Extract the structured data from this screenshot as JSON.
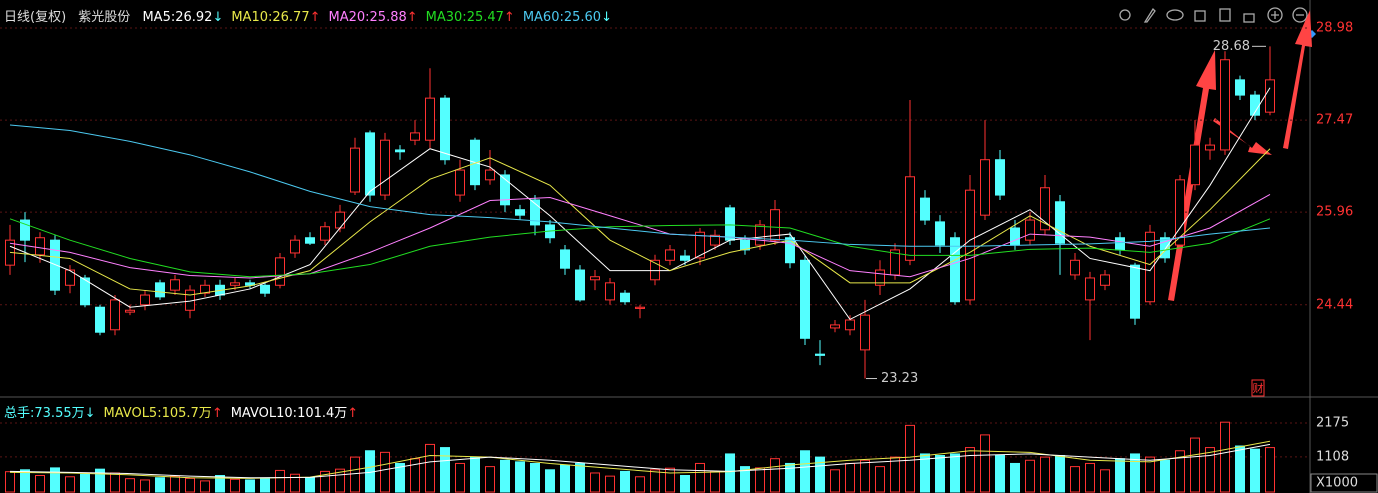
{
  "chart_data": {
    "type": "candlestick",
    "header": {
      "period": "日线(复权)",
      "name": "紫光股份",
      "indicators": [
        {
          "label": "MA5:",
          "value": "26.92",
          "arrow": "↓",
          "color": "#ffffff",
          "arrow_color": "#54ffff",
          "values": [
            25.4,
            25.0,
            24.4,
            24.5,
            24.7,
            25.1,
            26.3,
            27.0,
            26.7,
            25.9,
            25.0,
            25.0,
            25.5,
            25.6,
            24.2,
            24.7,
            25.5,
            26.0,
            25.2,
            25.0,
            26.4,
            28.0
          ]
        },
        {
          "label": "MA10:",
          "value": "26.77",
          "arrow": "↑",
          "color": "#e8e84a",
          "arrow_color": "#ff3232",
          "values": [
            25.3,
            25.2,
            24.7,
            24.6,
            24.75,
            25.0,
            25.8,
            26.5,
            26.85,
            26.4,
            25.5,
            25.0,
            25.3,
            25.5,
            24.8,
            24.8,
            25.3,
            25.9,
            25.4,
            25.1,
            26.0,
            27.0
          ]
        },
        {
          "label": "MA20:",
          "value": "25.88",
          "arrow": "↑",
          "color": "#ff80ff",
          "arrow_color": "#ff3232",
          "values": [
            25.45,
            25.3,
            25.05,
            24.92,
            24.88,
            24.95,
            25.3,
            25.7,
            26.15,
            26.2,
            25.9,
            25.6,
            25.55,
            25.45,
            25.0,
            24.9,
            25.2,
            25.6,
            25.55,
            25.4,
            25.7,
            26.25
          ]
        },
        {
          "label": "MA30:",
          "value": "25.47",
          "arrow": "↑",
          "color": "#22dd22",
          "arrow_color": "#ff3232",
          "values": [
            25.85,
            25.5,
            25.2,
            24.98,
            24.9,
            24.95,
            25.1,
            25.4,
            25.55,
            25.65,
            25.72,
            25.74,
            25.75,
            25.7,
            25.4,
            25.25,
            25.25,
            25.35,
            25.37,
            25.3,
            25.45,
            25.85
          ]
        },
        {
          "label": "MA60:",
          "value": "25.60",
          "arrow": "↓",
          "color": "#4cc9f0",
          "arrow_color": "#54ffff",
          "values": [
            27.39,
            27.3,
            27.12,
            26.9,
            26.62,
            26.3,
            26.05,
            25.92,
            25.87,
            25.8,
            25.7,
            25.6,
            25.55,
            25.5,
            25.43,
            25.4,
            25.4,
            25.42,
            25.44,
            25.48,
            25.6,
            25.7
          ]
        }
      ]
    },
    "ma_x": [
      0,
      4,
      8,
      12,
      16,
      20,
      24,
      28,
      32,
      36,
      40,
      44,
      48,
      52,
      56,
      60,
      64,
      68,
      72,
      76,
      80,
      84
    ],
    "ohlc": [
      [
        25.09,
        25.75,
        24.93,
        25.5
      ],
      [
        25.83,
        25.96,
        25.14,
        25.5
      ],
      [
        25.26,
        25.63,
        25.13,
        25.54
      ],
      [
        25.5,
        25.58,
        24.6,
        24.68
      ],
      [
        24.76,
        25.09,
        24.63,
        25.01
      ],
      [
        24.88,
        24.93,
        24.4,
        24.44
      ],
      [
        24.4,
        24.44,
        23.94,
        23.99
      ],
      [
        24.03,
        24.6,
        23.94,
        24.52
      ],
      [
        24.32,
        24.44,
        24.27,
        24.35
      ],
      [
        24.44,
        24.68,
        24.35,
        24.6
      ],
      [
        24.8,
        24.85,
        24.52,
        24.57
      ],
      [
        24.68,
        24.93,
        24.6,
        24.85
      ],
      [
        24.35,
        24.76,
        24.22,
        24.68
      ],
      [
        24.63,
        24.85,
        24.57,
        24.76
      ],
      [
        24.76,
        24.85,
        24.52,
        24.6
      ],
      [
        24.76,
        24.88,
        24.68,
        24.8
      ],
      [
        24.8,
        24.85,
        24.71,
        24.76
      ],
      [
        24.76,
        24.8,
        24.57,
        24.63
      ],
      [
        24.76,
        25.29,
        24.71,
        25.21
      ],
      [
        25.29,
        25.58,
        25.21,
        25.5
      ],
      [
        25.54,
        25.63,
        25.42,
        25.45
      ],
      [
        25.5,
        25.8,
        25.42,
        25.72
      ],
      [
        25.7,
        26.08,
        25.63,
        25.96
      ],
      [
        26.29,
        27.18,
        26.24,
        27.01
      ],
      [
        27.26,
        27.3,
        26.13,
        26.24
      ],
      [
        26.24,
        27.26,
        26.16,
        27.14
      ],
      [
        26.98,
        27.06,
        26.82,
        26.95
      ],
      [
        27.14,
        27.47,
        27.06,
        27.26
      ],
      [
        27.14,
        28.32,
        27.01,
        27.83
      ],
      [
        27.83,
        27.88,
        26.74,
        26.82
      ],
      [
        26.24,
        26.82,
        26.13,
        26.65
      ],
      [
        27.14,
        27.18,
        26.32,
        26.41
      ],
      [
        26.49,
        26.98,
        26.41,
        26.65
      ],
      [
        26.57,
        26.65,
        25.96,
        26.08
      ],
      [
        26.0,
        26.08,
        25.83,
        25.91
      ],
      [
        26.16,
        26.24,
        25.58,
        25.75
      ],
      [
        25.75,
        25.83,
        25.45,
        25.54
      ],
      [
        25.34,
        25.42,
        24.93,
        25.04
      ],
      [
        25.01,
        25.09,
        24.49,
        24.52
      ],
      [
        24.85,
        25.01,
        24.68,
        24.9
      ],
      [
        24.52,
        24.88,
        24.44,
        24.8
      ],
      [
        24.63,
        24.68,
        24.44,
        24.49
      ],
      [
        24.38,
        24.44,
        24.22,
        24.4
      ],
      [
        24.85,
        25.26,
        24.76,
        25.17
      ],
      [
        25.17,
        25.42,
        25.09,
        25.34
      ],
      [
        25.24,
        25.34,
        25.09,
        25.17
      ],
      [
        25.21,
        25.7,
        25.09,
        25.63
      ],
      [
        25.42,
        25.67,
        25.34,
        25.58
      ],
      [
        26.03,
        26.08,
        25.42,
        25.5
      ],
      [
        25.5,
        25.58,
        25.26,
        25.34
      ],
      [
        25.42,
        25.83,
        25.34,
        25.75
      ],
      [
        25.5,
        26.16,
        25.42,
        26.0
      ],
      [
        25.54,
        25.63,
        25.04,
        25.13
      ],
      [
        25.17,
        25.26,
        23.78,
        23.89
      ],
      [
        23.63,
        23.86,
        23.45,
        23.61
      ],
      [
        24.06,
        24.19,
        23.99,
        24.11
      ],
      [
        24.03,
        24.27,
        23.94,
        24.19
      ],
      [
        23.7,
        24.52,
        23.23,
        24.27
      ],
      [
        24.76,
        25.17,
        24.6,
        25.01
      ],
      [
        24.93,
        25.45,
        24.85,
        25.34
      ],
      [
        25.17,
        27.8,
        25.09,
        26.54
      ],
      [
        26.19,
        26.32,
        25.75,
        25.83
      ],
      [
        25.8,
        25.91,
        25.29,
        25.42
      ],
      [
        25.54,
        25.63,
        24.44,
        24.49
      ],
      [
        24.52,
        26.57,
        24.44,
        26.32
      ],
      [
        25.91,
        27.47,
        25.83,
        26.82
      ],
      [
        26.82,
        26.98,
        26.16,
        26.24
      ],
      [
        25.7,
        25.83,
        25.34,
        25.42
      ],
      [
        25.5,
        25.96,
        25.42,
        25.83
      ],
      [
        25.67,
        26.57,
        25.58,
        26.36
      ],
      [
        26.13,
        26.24,
        24.93,
        25.45
      ],
      [
        24.93,
        25.29,
        24.85,
        25.17
      ],
      [
        24.52,
        24.98,
        23.86,
        24.88
      ],
      [
        24.76,
        25.01,
        24.68,
        24.93
      ],
      [
        25.54,
        25.63,
        25.26,
        25.34
      ],
      [
        25.09,
        25.13,
        24.11,
        24.22
      ],
      [
        24.49,
        25.75,
        24.44,
        25.63
      ],
      [
        25.54,
        25.63,
        25.13,
        25.21
      ],
      [
        25.42,
        26.57,
        25.34,
        26.49
      ],
      [
        26.41,
        27.47,
        26.32,
        27.06
      ],
      [
        26.98,
        27.18,
        26.82,
        27.06
      ],
      [
        26.98,
        28.6,
        26.9,
        28.46
      ],
      [
        28.13,
        28.2,
        27.8,
        27.88
      ],
      [
        27.88,
        27.95,
        27.47,
        27.55
      ],
      [
        27.6,
        28.68,
        27.55,
        28.13
      ]
    ],
    "up_color": "#ff3232",
    "down_color": "#54ffff",
    "ylim": [
      22.96,
      29.44
    ],
    "yticks": [
      24.44,
      25.96,
      27.47,
      28.98
    ],
    "grid": true,
    "high_label": 28.68,
    "low_label": 23.23,
    "badge": "财",
    "volume": {
      "indicators": [
        {
          "label": "总手:",
          "value": "73.55万",
          "arrow": "↓",
          "color": "#54ffff",
          "arrow_color": "#54ffff"
        },
        {
          "label": "MAVOL5:",
          "value": "105.7万",
          "arrow": "↑",
          "color": "#e8e84a",
          "arrow_color": "#ff3232",
          "values": [
            620,
            600,
            540,
            450,
            430,
            470,
            780,
            1150,
            1100,
            900,
            750,
            600,
            640,
            850,
            1000,
            1100,
            1300,
            1250,
            1000,
            950,
            1250,
            1600
          ]
        },
        {
          "label": "MAVOL10:",
          "value": "101.4万",
          "arrow": "↑",
          "color": "#ffffff",
          "arrow_color": "#ff3232",
          "values": [
            650,
            620,
            580,
            500,
            450,
            460,
            620,
            950,
            1100,
            1000,
            850,
            700,
            650,
            750,
            900,
            1000,
            1150,
            1200,
            1100,
            1000,
            1150,
            1500
          ]
        }
      ],
      "values": [
        640,
        700,
        520,
        760,
        480,
        560,
        720,
        600,
        420,
        380,
        450,
        500,
        430,
        350,
        520,
        400,
        380,
        420,
        680,
        560,
        460,
        650,
        720,
        1100,
        1300,
        1250,
        900,
        1050,
        1500,
        1400,
        900,
        1100,
        800,
        1000,
        950,
        900,
        700,
        850,
        900,
        600,
        500,
        650,
        480,
        700,
        750,
        520,
        900,
        650,
        1200,
        800,
        760,
        1050,
        900,
        1300,
        1100,
        700,
        900,
        1000,
        800,
        1100,
        2100,
        1200,
        1150,
        1200,
        1400,
        1800,
        1150,
        900,
        1000,
        1100,
        1150,
        800,
        900,
        700,
        1050,
        1200,
        1100,
        1000,
        1300,
        1700,
        1400,
        2200,
        1450,
        1350,
        1400
      ],
      "ylim": [
        0,
        2900
      ],
      "yticks": [
        1108,
        2175
      ],
      "unit": "X1000"
    }
  }
}
